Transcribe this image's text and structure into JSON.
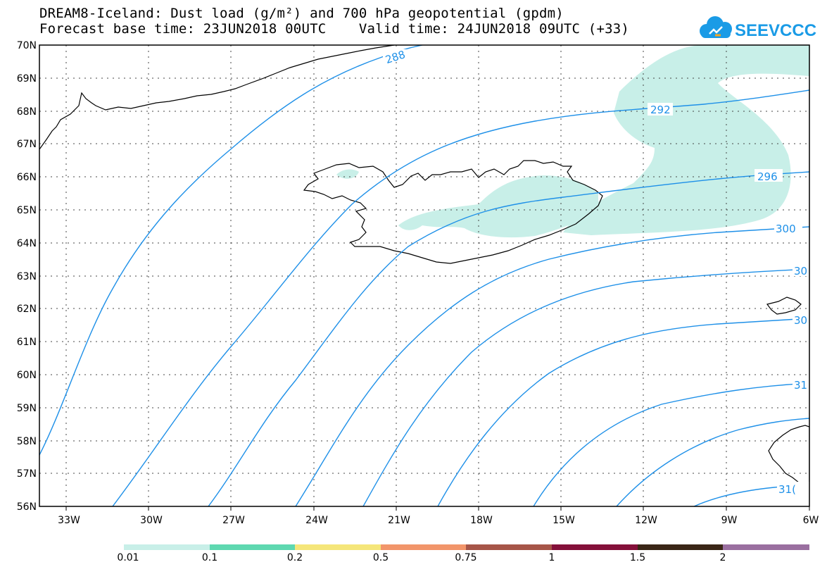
{
  "title": {
    "line1": "DREAM8-Iceland: Dust load (g/m²) and 700 hPa geopotential (gpdm)",
    "line2": "Forecast base time: 23JUN2018 00UTC    Valid time: 24JUN2018 09UTC (+33)"
  },
  "logo": {
    "text": "SEEVCCC",
    "icon": "cloud-logo-icon",
    "color": "#1a9be6"
  },
  "map": {
    "lon_range": [
      -34.5,
      -6
    ],
    "lat_range": [
      56,
      70
    ],
    "lat_labels": [
      "70N",
      "69N",
      "68N",
      "67N",
      "66N",
      "65N",
      "64N",
      "63N",
      "62N",
      "61N",
      "60N",
      "59N",
      "58N",
      "57N",
      "56N"
    ],
    "lon_labels": [
      "33W",
      "30W",
      "27W",
      "24W",
      "21W",
      "18W",
      "15W",
      "12W",
      "9W",
      "6W"
    ],
    "contour_color": "#1e90e8",
    "contour_labels": [
      "288",
      "292",
      "296",
      "300",
      "30",
      "30",
      "31",
      "31("
    ],
    "dust_color": "#c8efe8"
  },
  "colorbar": {
    "colors": [
      "#c8efe8",
      "#5ed8b0",
      "#f5e67a",
      "#f2956a",
      "#a65548",
      "#84103a",
      "#3a2616",
      "#9a6fa0"
    ],
    "labels": [
      "0.01",
      "0.1",
      "0.2",
      "0.5",
      "0.75",
      "1",
      "1.5",
      "2"
    ]
  }
}
